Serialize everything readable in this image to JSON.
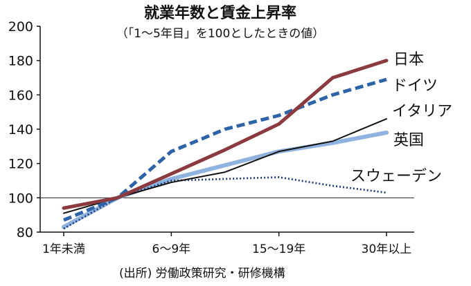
{
  "chart_data": {
    "type": "line",
    "title": "就業年数と賃金上昇率",
    "subtitle": "（「1～5年目」を100としたときの値）",
    "source": "(出所) 労働政策研究・研修機構",
    "xlabel": "",
    "ylabel": "",
    "ylim": [
      80,
      200
    ],
    "yticks": [
      80,
      100,
      120,
      140,
      160,
      180,
      200
    ],
    "x_positions": [
      0,
      1,
      2,
      3,
      4,
      5,
      6
    ],
    "x_tick_labels": [
      {
        "pos": 0,
        "label": "1年未満"
      },
      {
        "pos": 2,
        "label": "6～9年"
      },
      {
        "pos": 4,
        "label": "15～19年"
      },
      {
        "pos": 6,
        "label": "30年以上"
      }
    ],
    "reference_line": 100,
    "grid": false,
    "legend": "direct labels at right end of lines",
    "series": [
      {
        "name": "日本",
        "color": "#8b3a3f",
        "style": "solid-thick",
        "values": [
          94,
          100,
          114,
          128,
          143,
          170,
          180
        ]
      },
      {
        "name": "ドイツ",
        "color": "#2f63a8",
        "style": "dashed-thick",
        "values": [
          87,
          100,
          127,
          140,
          148,
          160,
          169
        ]
      },
      {
        "name": "イタリア",
        "color": "#111111",
        "style": "solid-thin",
        "values": [
          91,
          100,
          109,
          115,
          127,
          133,
          146
        ]
      },
      {
        "name": "英国",
        "color": "#8fb3de",
        "style": "solid-thick-light",
        "values": [
          83,
          100,
          111,
          119,
          127,
          132,
          138
        ]
      },
      {
        "name": "スウェーデン",
        "color": "#1f3f7a",
        "style": "dotted",
        "values": [
          82,
          100,
          110,
          111,
          112,
          107,
          103
        ]
      }
    ]
  }
}
